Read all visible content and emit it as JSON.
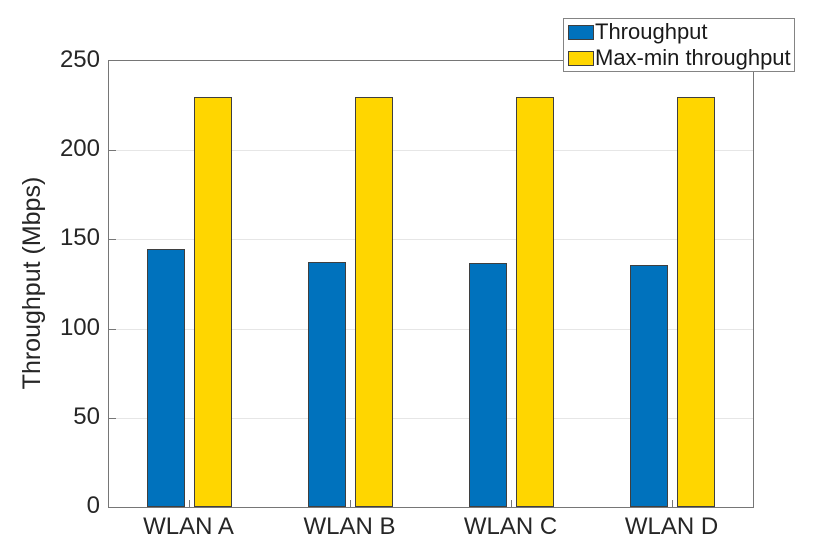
{
  "figure": {
    "background": "#ffffff"
  },
  "chart_data": {
    "type": "bar",
    "title": "",
    "xlabel": "",
    "ylabel": "Throughput (Mbps)",
    "categories": [
      "WLAN A",
      "WLAN B",
      "WLAN C",
      "WLAN D"
    ],
    "series": [
      {
        "name": "Throughput",
        "color": "#0072BD",
        "values": [
          144.5,
          137.5,
          136.5,
          135.5
        ]
      },
      {
        "name": "Max-min throughput",
        "color": "#FFD600",
        "values": [
          230,
          230,
          230,
          230
        ]
      }
    ],
    "ylim": [
      0,
      250
    ],
    "yticks": [
      0,
      50,
      100,
      150,
      200,
      250
    ],
    "grid": "horizontal",
    "legend_position": "top-right",
    "bar_edge_color": "#3f3f3f",
    "axis_color": "#767676",
    "grid_color": "#e6e6e6",
    "text_color": "#262626"
  }
}
